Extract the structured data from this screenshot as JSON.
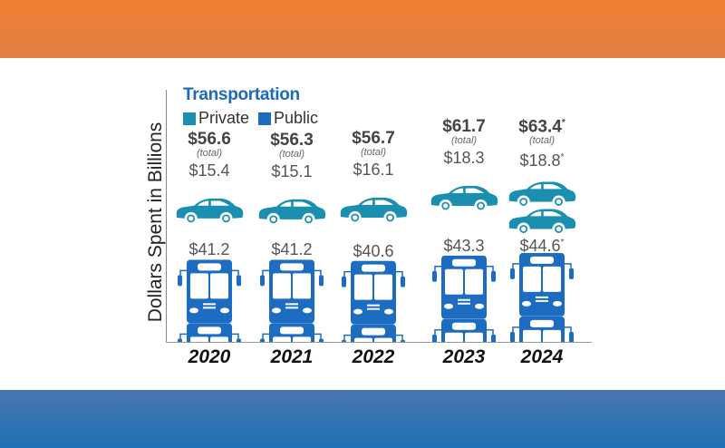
{
  "chart_data": {
    "type": "bar",
    "title": "Transportation",
    "ylabel": "Dollars Spent in Billions",
    "xlabel": "",
    "categories": [
      "2020",
      "2021",
      "2022",
      "2023",
      "2024"
    ],
    "legend": {
      "position": "top-left",
      "entries": [
        "Private",
        "Public"
      ]
    },
    "series": [
      {
        "name": "Private",
        "values": [
          15.4,
          15.1,
          16.1,
          18.3,
          18.8
        ],
        "labels": [
          "$15.4",
          "$15.1",
          "$16.1",
          "$18.3",
          "$18.8"
        ],
        "estimated": [
          false,
          false,
          false,
          false,
          true
        ]
      },
      {
        "name": "Public",
        "values": [
          41.2,
          41.2,
          40.6,
          43.3,
          44.6
        ],
        "labels": [
          "$41.2",
          "$41.2",
          "$40.6",
          "$43.3",
          "$44.6"
        ],
        "estimated": [
          false,
          false,
          false,
          false,
          true
        ]
      }
    ],
    "totals": [
      56.6,
      56.3,
      56.7,
      61.7,
      63.4
    ],
    "total_labels": [
      "$56.6",
      "$56.3",
      "$56.7",
      "$61.7",
      "$63.4"
    ],
    "total_sublabel": "(total)",
    "estimate_marker": "*",
    "colors": {
      "Private": "#1a8fb0",
      "Public": "#1c6cc2"
    }
  },
  "legend": {
    "private": "Private",
    "public": "Public"
  }
}
